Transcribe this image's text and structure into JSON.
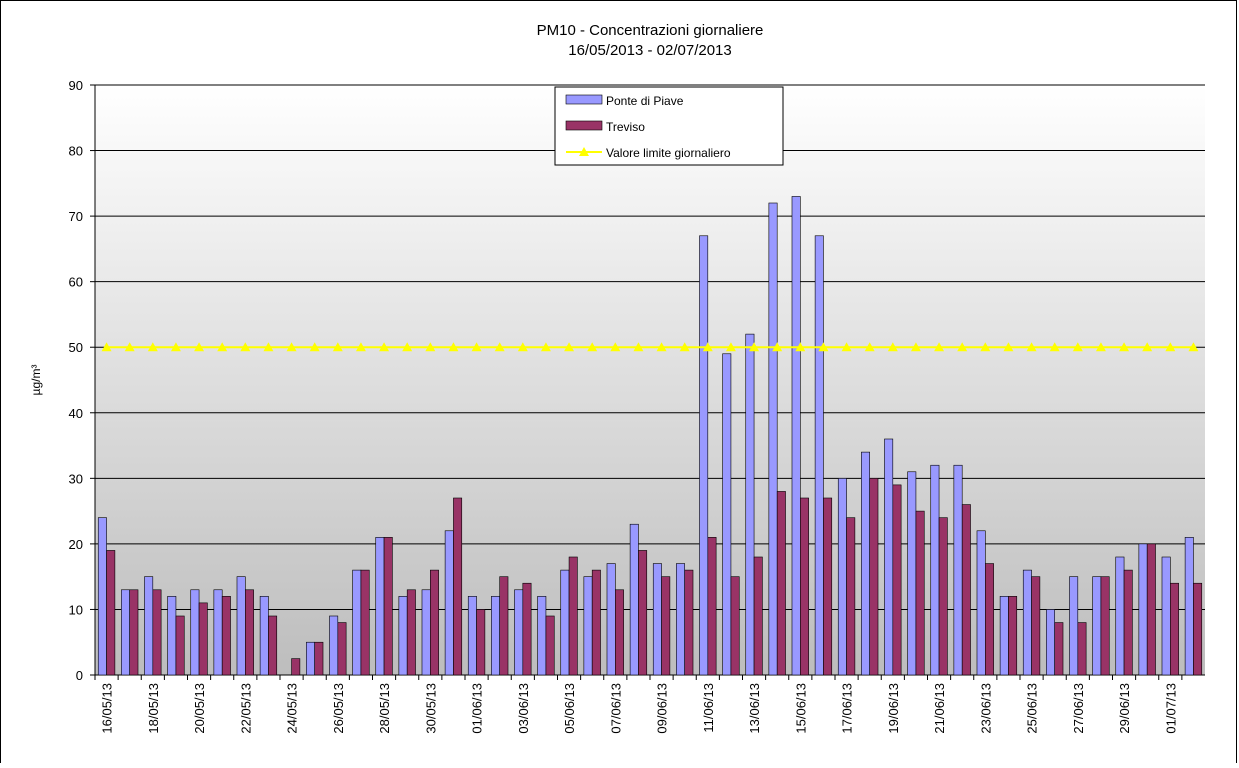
{
  "chart_data": {
    "type": "bar",
    "title": "PM10 - Concentrazioni giornaliere",
    "subtitle": "16/05/2013 - 02/07/2013",
    "y_label": "µg/m³",
    "categories": [
      "16/05/13",
      null,
      "18/05/13",
      null,
      "20/05/13",
      null,
      "22/05/13",
      null,
      "24/05/13",
      null,
      "26/05/13",
      null,
      "28/05/13",
      null,
      "30/05/13",
      null,
      "01/06/13",
      null,
      "03/06/13",
      null,
      "05/06/13",
      null,
      "07/06/13",
      null,
      "09/06/13",
      null,
      "11/06/13",
      null,
      "13/06/13",
      null,
      "15/06/13",
      null,
      "17/06/13",
      null,
      "19/06/13",
      null,
      "21/06/13",
      null,
      "23/06/13",
      null,
      "25/06/13",
      null,
      "27/06/13",
      null,
      "29/06/13",
      null,
      "01/07/13",
      null
    ],
    "series": [
      {
        "name": "Ponte di Piave",
        "color": "#9999ff",
        "type": "bar",
        "values": [
          24,
          13,
          15,
          12,
          13,
          13,
          15,
          12,
          null,
          5,
          9,
          16,
          21,
          12,
          13,
          22,
          12,
          12,
          13,
          12,
          16,
          15,
          17,
          23,
          17,
          17,
          67,
          49,
          52,
          72,
          73,
          67,
          30,
          34,
          36,
          31,
          32,
          32,
          22,
          12,
          16,
          10,
          15,
          15,
          18,
          20,
          18,
          21
        ]
      },
      {
        "name": "Treviso",
        "color": "#993366",
        "type": "bar",
        "values": [
          19,
          13,
          13,
          9,
          11,
          12,
          13,
          9,
          2.5,
          5,
          8,
          16,
          21,
          13,
          16,
          27,
          10,
          15,
          14,
          9,
          18,
          16,
          13,
          19,
          15,
          16,
          21,
          15,
          18,
          28,
          27,
          27,
          24,
          30,
          29,
          25,
          24,
          26,
          17,
          12,
          15,
          8,
          8,
          15,
          16,
          20,
          14,
          14
        ]
      },
      {
        "name": "Valore limite giornaliero",
        "color": "#ffff00",
        "type": "line",
        "values": [
          50,
          50,
          50,
          50,
          50,
          50,
          50,
          50,
          50,
          50,
          50,
          50,
          50,
          50,
          50,
          50,
          50,
          50,
          50,
          50,
          50,
          50,
          50,
          50,
          50,
          50,
          50,
          50,
          50,
          50,
          50,
          50,
          50,
          50,
          50,
          50,
          50,
          50,
          50,
          50,
          50,
          50,
          50,
          50,
          50,
          50,
          50,
          50
        ]
      }
    ],
    "ylim": [
      0,
      90
    ],
    "yticks": [
      0,
      10,
      20,
      30,
      40,
      50,
      60,
      70,
      80,
      90
    ],
    "grid": true,
    "legend": "top"
  }
}
